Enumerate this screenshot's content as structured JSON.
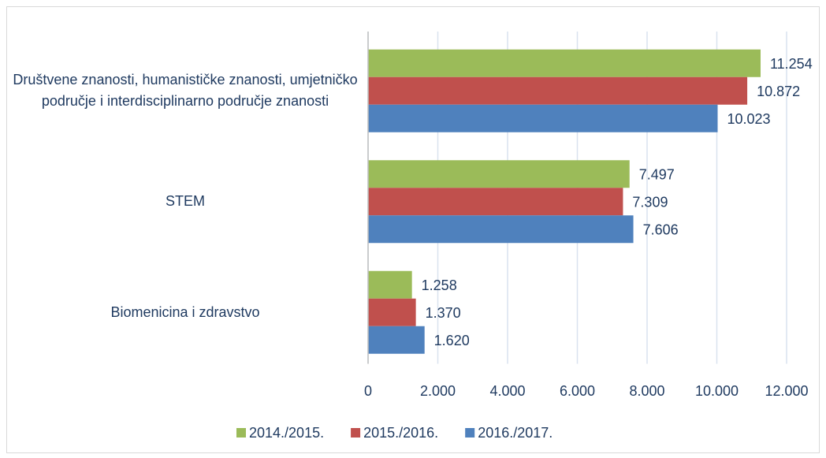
{
  "chart_data": {
    "type": "bar",
    "orientation": "horizontal",
    "categories": [
      "Društvene znanosti, humanističke znanosti, umjetničko područje i interdisciplinarno područje znanosti",
      "STEM",
      "Biomenicina i zdravstvo"
    ],
    "series": [
      {
        "name": "2014./2015.",
        "color": "#9bbb59",
        "values": [
          11254,
          7497,
          1258
        ],
        "value_labels": [
          "11.254",
          "7.497",
          "1.258"
        ]
      },
      {
        "name": "2015./2016.",
        "color": "#c0504d",
        "values": [
          10872,
          7309,
          1370
        ],
        "value_labels": [
          "10.872",
          "7.309",
          "1.370"
        ]
      },
      {
        "name": "2016./2017.",
        "color": "#4f81bd",
        "values": [
          10023,
          7606,
          1620
        ],
        "value_labels": [
          "10.023",
          "7.606",
          "1.620"
        ]
      }
    ],
    "xlim": [
      0,
      12000
    ],
    "xticks": [
      0,
      {
        "value": 2000,
        "label": "2.000"
      },
      {
        "value": 4000,
        "label": "4.000"
      },
      {
        "value": 6000,
        "label": "6.000"
      },
      {
        "value": 8000,
        "label": "8.000"
      },
      {
        "value": 10000,
        "label": "10.000"
      },
      {
        "value": 12000,
        "label": "12.000"
      }
    ],
    "grid": true,
    "legend": "bottom"
  }
}
